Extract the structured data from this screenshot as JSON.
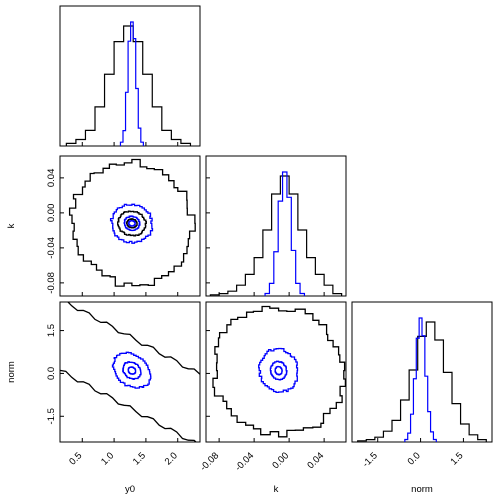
{
  "chart_data": {
    "type": "corner",
    "parameters": [
      "y0",
      "k",
      "norm"
    ],
    "colors": {
      "prior": "#000000",
      "posterior": "#0000ff"
    },
    "ranges": {
      "y0": [
        0.15,
        2.35
      ],
      "k": [
        -0.095,
        0.065
      ],
      "norm": [
        -2.4,
        2.5
      ]
    },
    "ticks": {
      "y0": [
        0.5,
        1.0,
        1.5,
        2.0
      ],
      "k": [
        -0.08,
        -0.04,
        0.0,
        0.04
      ],
      "norm": [
        -1.5,
        0.0,
        1.5
      ]
    },
    "tick_labels": {
      "y0": [
        "0.5",
        "1.0",
        "1.5",
        "2.0"
      ],
      "k": [
        "-0.08",
        "-0.04",
        "0.00",
        "0.04"
      ],
      "norm": [
        "-1.5",
        "0.0",
        "1.5"
      ]
    },
    "y_ticks": {
      "k": [
        -0.08,
        -0.04,
        0.0,
        0.04
      ],
      "norm": [
        -1.5,
        0.0,
        1.5
      ]
    },
    "y_tick_labels": {
      "k": [
        "-0.08",
        "-0.04",
        "0.00",
        "0.04"
      ],
      "norm": [
        "-1.5",
        "0.0",
        "1.5"
      ]
    },
    "axis_labels": {
      "x": [
        "y0",
        "k",
        "norm"
      ],
      "y": [
        "k",
        "norm"
      ]
    },
    "marginals": [
      {
        "param": "y0",
        "bin_edges": [
          0.25,
          0.4,
          0.55,
          0.7,
          0.85,
          1.0,
          1.15,
          1.3,
          1.45,
          1.6,
          1.75,
          1.9,
          2.05,
          2.2
        ],
        "prior_counts": [
          2,
          5,
          12,
          30,
          55,
          80,
          92,
          80,
          55,
          30,
          12,
          5,
          2
        ],
        "posterior_x": [
          1.12,
          1.16,
          1.2,
          1.24,
          1.28,
          1.32,
          1.36,
          1.4,
          1.44
        ],
        "posterior_y": [
          3,
          12,
          42,
          82,
          97,
          84,
          45,
          14,
          3
        ]
      },
      {
        "param": "k",
        "bin_edges": [
          -0.09,
          -0.08,
          -0.07,
          -0.06,
          -0.05,
          -0.04,
          -0.03,
          -0.02,
          -0.01,
          0.0,
          0.01,
          0.02,
          0.03,
          0.04,
          0.05,
          0.06
        ],
        "prior_counts": [
          1,
          2,
          4,
          9,
          18,
          32,
          55,
          85,
          100,
          85,
          55,
          32,
          18,
          9,
          2
        ],
        "posterior_x": [
          -0.025,
          -0.02,
          -0.015,
          -0.01,
          -0.005,
          0.0,
          0.005,
          0.01,
          0.015
        ],
        "posterior_y": [
          2,
          10,
          35,
          75,
          98,
          78,
          36,
          10,
          2
        ]
      },
      {
        "param": "norm",
        "bin_edges": [
          -2.2,
          -1.9,
          -1.6,
          -1.3,
          -1.0,
          -0.7,
          -0.4,
          -0.1,
          0.2,
          0.5,
          0.8,
          1.1,
          1.4,
          1.7,
          2.0,
          2.3
        ],
        "prior_counts": [
          1,
          2,
          4,
          9,
          18,
          35,
          60,
          88,
          100,
          85,
          58,
          32,
          15,
          6,
          2
        ],
        "posterior_x": [
          -0.5,
          -0.4,
          -0.3,
          -0.2,
          -0.1,
          0.0,
          0.1,
          0.2,
          0.3,
          0.4,
          0.5
        ],
        "posterior_y": [
          2,
          7,
          22,
          50,
          82,
          98,
          84,
          52,
          24,
          8,
          2
        ]
      }
    ],
    "pairs": [
      {
        "x": "y0",
        "y": "k",
        "prior_contours": [
          {
            "type": "ellipse",
            "cx": 1.28,
            "cy": -0.012,
            "rx": 0.95,
            "ry": 0.07,
            "rot": 0
          },
          {
            "type": "ellipse",
            "cx": 1.28,
            "cy": -0.012,
            "rx": 0.22,
            "ry": 0.014,
            "rot": 0
          },
          {
            "type": "ellipse",
            "cx": 1.28,
            "cy": -0.012,
            "rx": 0.08,
            "ry": 0.005,
            "rot": 0
          }
        ],
        "posterior_contours": [
          {
            "type": "ellipse",
            "cx": 1.28,
            "cy": -0.012,
            "rx": 0.32,
            "ry": 0.022,
            "rot": 0
          },
          {
            "type": "ellipse",
            "cx": 1.28,
            "cy": -0.012,
            "rx": 0.12,
            "ry": 0.008,
            "rot": 0
          },
          {
            "type": "ellipse",
            "cx": 1.28,
            "cy": -0.012,
            "rx": 0.05,
            "ry": 0.003,
            "rot": 0
          }
        ]
      },
      {
        "x": "y0",
        "y": "norm",
        "prior_contours": [
          {
            "type": "band",
            "c": 1.28,
            "slope": -1.2,
            "w": 1.25
          }
        ],
        "posterior_contours": [
          {
            "type": "tilted",
            "cx": 1.28,
            "cy": 0.1,
            "rx": 0.32,
            "ry": 0.55,
            "rot": -0.6
          },
          {
            "type": "tilted",
            "cx": 1.28,
            "cy": 0.1,
            "rx": 0.15,
            "ry": 0.28,
            "rot": -0.6
          },
          {
            "type": "tilted",
            "cx": 1.28,
            "cy": 0.1,
            "rx": 0.06,
            "ry": 0.12,
            "rot": -0.6
          }
        ]
      },
      {
        "x": "k",
        "y": "norm",
        "prior_contours": [
          {
            "type": "ellipse",
            "cx": -0.012,
            "cy": 0.1,
            "rx": 0.075,
            "ry": 2.2,
            "rot": 0
          }
        ],
        "posterior_contours": [
          {
            "type": "ellipse",
            "cx": -0.012,
            "cy": 0.1,
            "rx": 0.022,
            "ry": 0.75,
            "rot": 0
          },
          {
            "type": "ellipse",
            "cx": -0.012,
            "cy": 0.1,
            "rx": 0.009,
            "ry": 0.32,
            "rot": 0
          },
          {
            "type": "ellipse",
            "cx": -0.012,
            "cy": 0.1,
            "rx": 0.004,
            "ry": 0.14,
            "rot": 0
          }
        ]
      }
    ]
  }
}
